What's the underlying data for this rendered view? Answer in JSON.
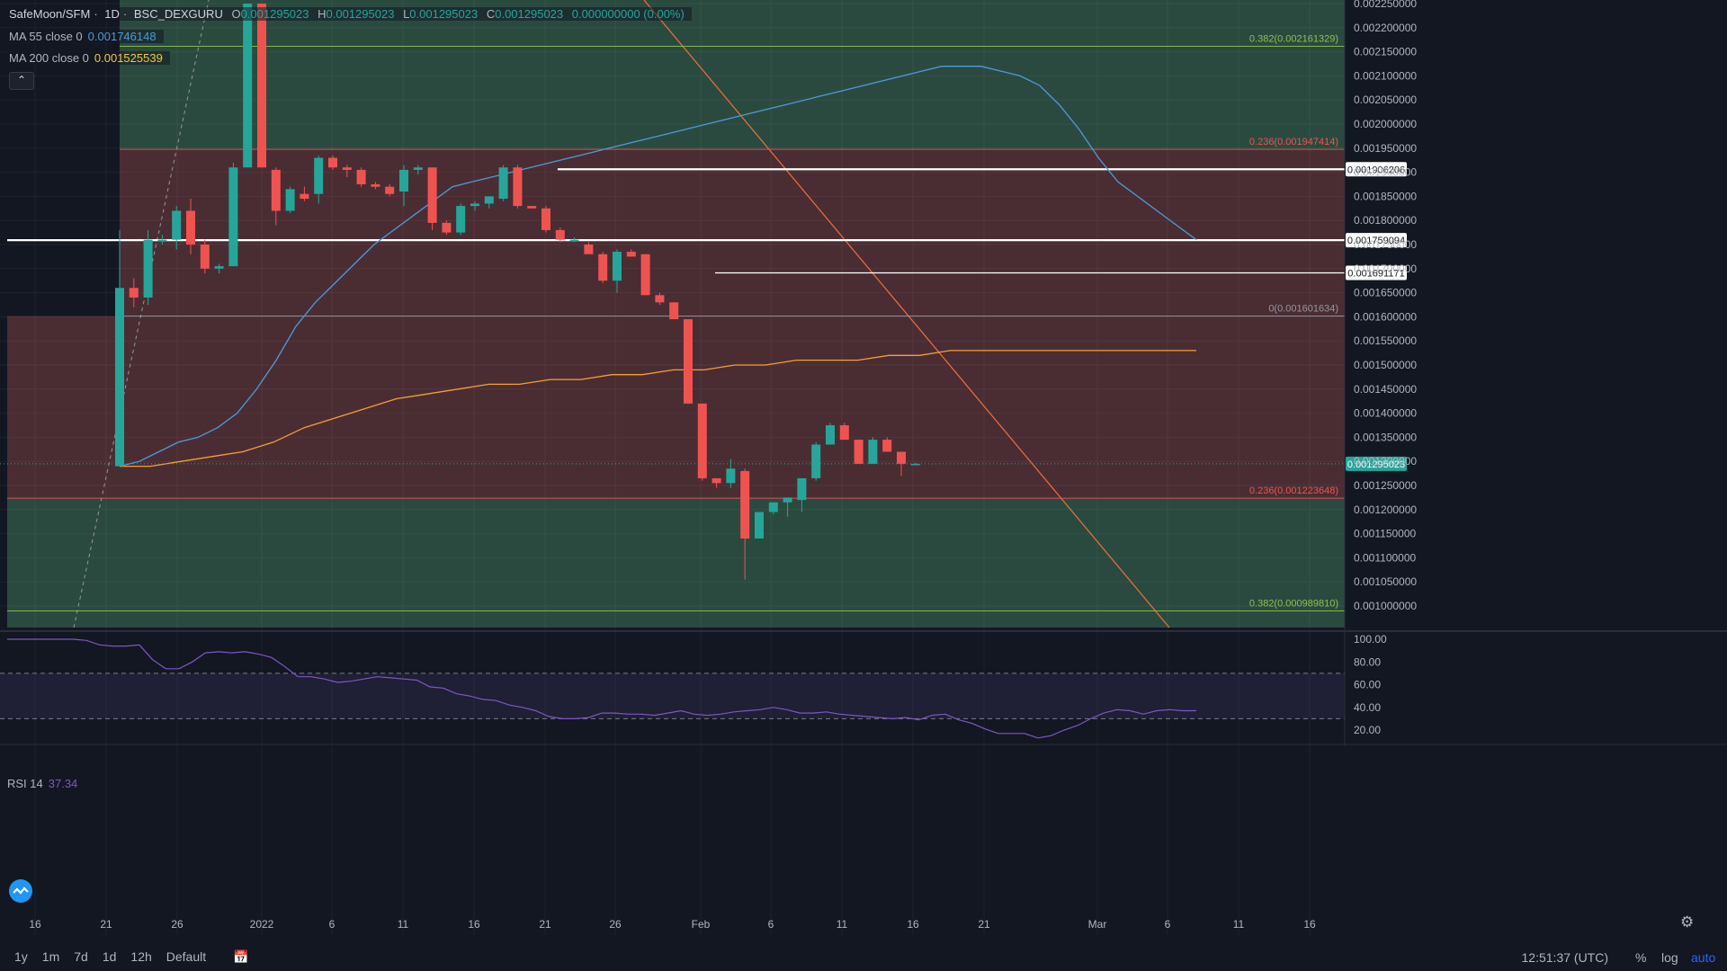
{
  "header": {
    "symbol": "SafeMoon/SFM",
    "interval": "1D",
    "exchange": "BSC_DEXGURU",
    "o_label": "O",
    "o_value": "0.001295023",
    "h_label": "H",
    "h_value": "0.001295023",
    "l_label": "L",
    "l_value": "0.001295023",
    "c_label": "C",
    "c_value": "0.001295023",
    "change": "0.000000000 (0.00%)"
  },
  "indicators": {
    "ma55_label": "MA 55 close 0",
    "ma55_value": "0.001746148",
    "ma200_label": "MA 200 close 0",
    "ma200_value": "0.001525539",
    "rsi_label": "RSI 14",
    "rsi_value": "37.34"
  },
  "collapse_icon": "chevron-up-icon",
  "bottombar": {
    "timeframes": [
      "1y",
      "1m",
      "7d",
      "1d",
      "12h"
    ],
    "default_label": "Default",
    "time": "12:51:37 (UTC)",
    "percent": "%",
    "log": "log",
    "auto": "auto"
  },
  "colors": {
    "background": "#131722",
    "up": "#26a69a",
    "down": "#ef5350",
    "ma55": "#4c9bd6",
    "ma200": "#f59f36",
    "rsi": "#7e57c2",
    "zone_green": "#2b4a3f",
    "zone_red": "#4a2d33",
    "accent": "#2962ff"
  },
  "chart_data": {
    "type": "candlestick",
    "ylim": [
      0.00095,
      0.00225
    ],
    "yticks": [
      "0.002250000",
      "0.002200000",
      "0.002150000",
      "0.002100000",
      "0.002050000",
      "0.002000000",
      "0.001950000",
      "0.001900000",
      "0.001850000",
      "0.001800000",
      "0.001750000",
      "0.001700000",
      "0.001650000",
      "0.001600000",
      "0.001550000",
      "0.001500000",
      "0.001450000",
      "0.001400000",
      "0.001350000",
      "0.001300000",
      "0.001250000",
      "0.001200000",
      "0.001150000",
      "0.001100000",
      "0.001050000",
      "0.001000000"
    ],
    "xticks": [
      "16",
      "21",
      "26",
      "2022",
      "6",
      "11",
      "16",
      "21",
      "26",
      "Feb",
      "6",
      "11",
      "16",
      "21",
      "Mar",
      "6",
      "11",
      "16"
    ],
    "fib_labels": [
      {
        "text": "0.382(0.002161329)",
        "price": 0.002161329,
        "color": "#8bc34a"
      },
      {
        "text": "0.236(0.001947414)",
        "price": 0.001947414,
        "color": "#ef5350"
      },
      {
        "text": "0(0.001601634)",
        "price": 0.001601634,
        "color": "#9598a1"
      },
      {
        "text": "0.236(0.001223648)",
        "price": 0.001223648,
        "color": "#ef5350"
      },
      {
        "text": "0.382(0.000989810)",
        "price": 0.00098981,
        "color": "#8bc34a"
      }
    ],
    "level_labels": [
      {
        "text": "0.001906206",
        "price": 0.001906206
      },
      {
        "text": "0.001759094",
        "price": 0.001759094
      },
      {
        "text": "0.001691171",
        "price": 0.001691171
      }
    ],
    "last_price": {
      "text": "0.001295023",
      "price": 0.001295023
    },
    "candles": [
      {
        "o": 0.00129,
        "h": 0.00178,
        "l": 0.00129,
        "c": 0.00166
      },
      {
        "o": 0.00166,
        "h": 0.00168,
        "l": 0.00162,
        "c": 0.00164
      },
      {
        "o": 0.00164,
        "h": 0.00178,
        "l": 0.001625,
        "c": 0.00176
      },
      {
        "o": 0.00176,
        "h": 0.00177,
        "l": 0.00175,
        "c": 0.00176
      },
      {
        "o": 0.00176,
        "h": 0.00183,
        "l": 0.00174,
        "c": 0.00182
      },
      {
        "o": 0.00182,
        "h": 0.001845,
        "l": 0.00173,
        "c": 0.00175
      },
      {
        "o": 0.00175,
        "h": 0.00176,
        "l": 0.00169,
        "c": 0.0017
      },
      {
        "o": 0.0017,
        "h": 0.00171,
        "l": 0.00169,
        "c": 0.001705
      },
      {
        "o": 0.001705,
        "h": 0.00192,
        "l": 0.001705,
        "c": 0.00191
      },
      {
        "o": 0.00191,
        "h": 0.0023,
        "l": 0.00191,
        "c": 0.0023
      },
      {
        "o": 0.0023,
        "h": 0.0023,
        "l": 0.00191,
        "c": 0.00191
      },
      {
        "o": 0.001905,
        "h": 0.00191,
        "l": 0.00179,
        "c": 0.00182
      },
      {
        "o": 0.00182,
        "h": 0.00187,
        "l": 0.001815,
        "c": 0.001865
      },
      {
        "o": 0.001855,
        "h": 0.00187,
        "l": 0.00184,
        "c": 0.001845
      },
      {
        "o": 0.001855,
        "h": 0.001935,
        "l": 0.001835,
        "c": 0.00193
      },
      {
        "o": 0.00193,
        "h": 0.001935,
        "l": 0.001905,
        "c": 0.00191
      },
      {
        "o": 0.00191,
        "h": 0.001915,
        "l": 0.00189,
        "c": 0.001905
      },
      {
        "o": 0.001905,
        "h": 0.00191,
        "l": 0.00187,
        "c": 0.001875
      },
      {
        "o": 0.001875,
        "h": 0.00188,
        "l": 0.001865,
        "c": 0.00187
      },
      {
        "o": 0.00187,
        "h": 0.001875,
        "l": 0.00185,
        "c": 0.001855
      },
      {
        "o": 0.00186,
        "h": 0.001915,
        "l": 0.00183,
        "c": 0.001905
      },
      {
        "o": 0.001905,
        "h": 0.001915,
        "l": 0.001895,
        "c": 0.00191
      },
      {
        "o": 0.00191,
        "h": 0.00191,
        "l": 0.00178,
        "c": 0.001795
      },
      {
        "o": 0.001795,
        "h": 0.0018,
        "l": 0.00177,
        "c": 0.001775
      },
      {
        "o": 0.001775,
        "h": 0.001835,
        "l": 0.00177,
        "c": 0.00183
      },
      {
        "o": 0.00183,
        "h": 0.00184,
        "l": 0.00182,
        "c": 0.001835
      },
      {
        "o": 0.001835,
        "h": 0.00185,
        "l": 0.001825,
        "c": 0.00185
      },
      {
        "o": 0.001845,
        "h": 0.001915,
        "l": 0.00184,
        "c": 0.00191
      },
      {
        "o": 0.00191,
        "h": 0.001915,
        "l": 0.001825,
        "c": 0.00183
      },
      {
        "o": 0.00183,
        "h": 0.00183,
        "l": 0.001825,
        "c": 0.001825
      },
      {
        "o": 0.001825,
        "h": 0.00183,
        "l": 0.001775,
        "c": 0.00178
      },
      {
        "o": 0.00178,
        "h": 0.001785,
        "l": 0.001755,
        "c": 0.00176
      },
      {
        "o": 0.00176,
        "h": 0.001765,
        "l": 0.001755,
        "c": 0.00176
      },
      {
        "o": 0.00175,
        "h": 0.001755,
        "l": 0.00173,
        "c": 0.00173
      },
      {
        "o": 0.00173,
        "h": 0.001735,
        "l": 0.00167,
        "c": 0.001675
      },
      {
        "o": 0.001675,
        "h": 0.00174,
        "l": 0.00165,
        "c": 0.001735
      },
      {
        "o": 0.001735,
        "h": 0.00174,
        "l": 0.001725,
        "c": 0.001725
      },
      {
        "o": 0.00173,
        "h": 0.00173,
        "l": 0.001645,
        "c": 0.001645
      },
      {
        "o": 0.001645,
        "h": 0.00165,
        "l": 0.001625,
        "c": 0.00163
      },
      {
        "o": 0.00163,
        "h": 0.00163,
        "l": 0.001595,
        "c": 0.001595
      },
      {
        "o": 0.001595,
        "h": 0.001595,
        "l": 0.00142,
        "c": 0.00142
      },
      {
        "o": 0.00142,
        "h": 0.00142,
        "l": 0.00126,
        "c": 0.001265
      },
      {
        "o": 0.001265,
        "h": 0.001265,
        "l": 0.001245,
        "c": 0.001255
      },
      {
        "o": 0.001255,
        "h": 0.001305,
        "l": 0.001245,
        "c": 0.001285
      },
      {
        "o": 0.00128,
        "h": 0.001285,
        "l": 0.001055,
        "c": 0.00114
      },
      {
        "o": 0.00114,
        "h": 0.001195,
        "l": 0.00114,
        "c": 0.001195
      },
      {
        "o": 0.001195,
        "h": 0.001215,
        "l": 0.00119,
        "c": 0.001215
      },
      {
        "o": 0.001215,
        "h": 0.001225,
        "l": 0.001185,
        "c": 0.001225
      },
      {
        "o": 0.00122,
        "h": 0.001265,
        "l": 0.001195,
        "c": 0.001265
      },
      {
        "o": 0.001265,
        "h": 0.00134,
        "l": 0.00126,
        "c": 0.001335
      },
      {
        "o": 0.001335,
        "h": 0.00138,
        "l": 0.001335,
        "c": 0.001375
      },
      {
        "o": 0.001375,
        "h": 0.00138,
        "l": 0.001345,
        "c": 0.001345
      },
      {
        "o": 0.001345,
        "h": 0.001345,
        "l": 0.001295,
        "c": 0.001295
      },
      {
        "o": 0.001295,
        "h": 0.00135,
        "l": 0.001295,
        "c": 0.001345
      },
      {
        "o": 0.001345,
        "h": 0.00135,
        "l": 0.00132,
        "c": 0.00132
      },
      {
        "o": 0.00132,
        "h": 0.00132,
        "l": 0.00127,
        "c": 0.001295
      },
      {
        "o": 0.001295,
        "h": 0.001297,
        "l": 0.001293,
        "c": 0.001295
      }
    ],
    "ma55": [
      0.00129,
      0.0013,
      0.00132,
      0.00134,
      0.00135,
      0.00137,
      0.0014,
      0.00145,
      0.00151,
      0.00158,
      0.00163,
      0.00167,
      0.00171,
      0.00175,
      0.00178,
      0.00181,
      0.00184,
      0.00187,
      0.00188,
      0.00189,
      0.0019,
      0.00191,
      0.00192,
      0.00193,
      0.00194,
      0.00195,
      0.00196,
      0.00197,
      0.00198,
      0.00199,
      0.002,
      0.00201,
      0.00202,
      0.00203,
      0.00204,
      0.00205,
      0.00206,
      0.00207,
      0.00208,
      0.00209,
      0.0021,
      0.00211,
      0.00212,
      0.00212,
      0.00212,
      0.00211,
      0.0021,
      0.00208,
      0.00204,
      0.00199,
      0.00193,
      0.00188,
      0.00185,
      0.00182,
      0.00179,
      0.00176
    ],
    "ma200": [
      0.00129,
      0.00129,
      0.0013,
      0.00131,
      0.00132,
      0.00134,
      0.00137,
      0.00139,
      0.00141,
      0.00143,
      0.00144,
      0.00145,
      0.00146,
      0.00146,
      0.00147,
      0.00147,
      0.00148,
      0.00148,
      0.00149,
      0.00149,
      0.0015,
      0.0015,
      0.00151,
      0.00151,
      0.00151,
      0.00152,
      0.00152,
      0.00153,
      0.00153,
      0.00153,
      0.00153,
      0.00153,
      0.00153,
      0.00153,
      0.00153,
      0.00153
    ],
    "rsi": {
      "ylim": [
        10,
        100
      ],
      "yticks": [
        "100.00",
        "80.00",
        "60.00",
        "40.00",
        "20.00"
      ],
      "bands": [
        70,
        30
      ],
      "values": [
        100,
        100,
        100,
        100,
        100,
        100,
        99,
        95,
        94,
        94,
        95,
        82,
        74,
        74,
        80,
        88,
        89,
        88,
        89,
        87,
        84,
        76,
        67,
        67,
        65,
        62,
        63,
        65,
        67,
        66,
        65,
        64,
        58,
        57,
        52,
        50,
        47,
        46,
        42,
        40,
        37,
        32,
        30,
        30,
        31,
        35,
        35,
        34,
        34,
        33,
        35,
        37,
        34,
        33,
        34,
        36,
        37,
        38,
        40,
        38,
        35,
        35,
        36,
        34,
        33,
        32,
        31,
        30,
        31,
        29,
        33,
        34,
        29,
        26,
        21,
        17,
        17,
        17,
        13,
        15,
        20,
        24,
        30,
        35,
        38,
        37,
        34,
        37,
        38,
        37,
        37
      ]
    }
  }
}
